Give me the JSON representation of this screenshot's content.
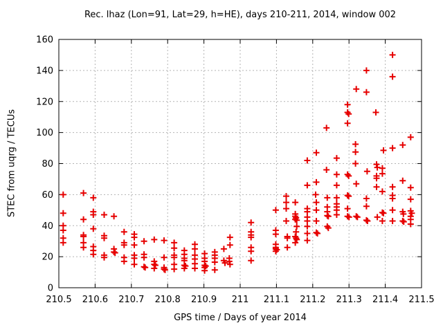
{
  "chart_data": {
    "type": "scatter",
    "title": "Rec. lhaz (Lon=91, Lat=29, h=HE), days 210-211, 2014, window 002",
    "xlabel": "GPS time / Days of year 2014",
    "ylabel": "STEC from uqrg / TECUs",
    "xlim": [
      210.5,
      211.5
    ],
    "ylim": [
      0,
      160
    ],
    "grid": true,
    "legend": "none",
    "marker": {
      "shape": "plus",
      "color": "#e60000",
      "size": 9
    },
    "colors": {
      "grid": "#b3b3b3",
      "axis": "#000000",
      "text": "#000000",
      "background": "#ffffff"
    },
    "xticks": {
      "values": [
        210.5,
        210.6,
        210.7,
        210.8,
        210.9,
        211.0,
        211.1,
        211.2,
        211.3,
        211.4,
        211.5
      ],
      "labels": [
        "210.5",
        "210.6",
        "210.7",
        "210.8",
        "210.9",
        "211",
        "211.1",
        "211.2",
        "211.3",
        "211.4",
        "211.5"
      ]
    },
    "yticks": {
      "values": [
        0,
        20,
        40,
        60,
        80,
        100,
        120,
        140,
        160
      ],
      "labels": [
        "0",
        "20",
        "40",
        "60",
        "80",
        "100",
        "120",
        "140",
        "160"
      ]
    },
    "series": [
      {
        "name": "STEC",
        "points": [
          [
            210.512,
            60
          ],
          [
            210.512,
            48
          ],
          [
            210.512,
            40
          ],
          [
            210.512,
            37
          ],
          [
            210.512,
            32
          ],
          [
            210.512,
            29
          ],
          [
            210.568,
            61
          ],
          [
            210.568,
            44
          ],
          [
            210.568,
            34
          ],
          [
            210.568,
            33
          ],
          [
            210.568,
            29
          ],
          [
            210.568,
            26
          ],
          [
            210.595,
            58
          ],
          [
            210.595,
            49
          ],
          [
            210.595,
            47
          ],
          [
            210.595,
            38
          ],
          [
            210.595,
            26.5
          ],
          [
            210.595,
            24
          ],
          [
            210.595,
            21.5
          ],
          [
            210.625,
            47
          ],
          [
            210.625,
            33.5
          ],
          [
            210.625,
            32
          ],
          [
            210.625,
            21
          ],
          [
            210.625,
            19.5
          ],
          [
            210.652,
            46
          ],
          [
            210.652,
            25
          ],
          [
            210.652,
            23
          ],
          [
            210.655,
            22.5
          ],
          [
            210.68,
            36
          ],
          [
            210.68,
            29
          ],
          [
            210.68,
            27.5
          ],
          [
            210.68,
            19.5
          ],
          [
            210.68,
            17
          ],
          [
            210.708,
            34.5
          ],
          [
            210.708,
            32.5
          ],
          [
            210.708,
            27.5
          ],
          [
            210.708,
            21
          ],
          [
            210.708,
            19
          ],
          [
            210.708,
            15
          ],
          [
            210.735,
            30
          ],
          [
            210.735,
            21.5
          ],
          [
            210.735,
            19.5
          ],
          [
            210.735,
            13.5
          ],
          [
            210.738,
            13
          ],
          [
            210.763,
            31
          ],
          [
            210.763,
            17
          ],
          [
            210.763,
            15
          ],
          [
            210.766,
            14.5
          ],
          [
            210.763,
            12.5
          ],
          [
            210.79,
            30.5
          ],
          [
            210.79,
            19.5
          ],
          [
            210.79,
            13
          ],
          [
            210.79,
            12
          ],
          [
            210.793,
            11.5
          ],
          [
            210.818,
            29
          ],
          [
            210.818,
            25.5
          ],
          [
            210.818,
            21
          ],
          [
            210.818,
            19.5
          ],
          [
            210.818,
            15
          ],
          [
            210.818,
            12
          ],
          [
            210.846,
            24
          ],
          [
            210.846,
            21.5
          ],
          [
            210.846,
            19
          ],
          [
            210.846,
            17.5
          ],
          [
            210.846,
            14.5
          ],
          [
            210.849,
            14
          ],
          [
            210.846,
            12.5
          ],
          [
            210.875,
            28
          ],
          [
            210.875,
            25
          ],
          [
            210.875,
            21
          ],
          [
            210.875,
            18.5
          ],
          [
            210.875,
            15.5
          ],
          [
            210.875,
            12.5
          ],
          [
            210.902,
            22
          ],
          [
            210.902,
            19
          ],
          [
            210.902,
            17
          ],
          [
            210.902,
            14.5
          ],
          [
            210.905,
            14
          ],
          [
            210.902,
            13
          ],
          [
            210.902,
            11
          ],
          [
            210.93,
            23
          ],
          [
            210.93,
            21
          ],
          [
            210.93,
            19
          ],
          [
            210.93,
            16.5
          ],
          [
            210.93,
            11.5
          ],
          [
            210.955,
            25
          ],
          [
            210.955,
            17.5
          ],
          [
            210.958,
            16
          ],
          [
            210.972,
            32.5
          ],
          [
            210.972,
            27.5
          ],
          [
            210.97,
            19
          ],
          [
            210.97,
            17
          ],
          [
            210.972,
            15
          ],
          [
            211.03,
            42
          ],
          [
            211.03,
            36
          ],
          [
            211.03,
            34
          ],
          [
            211.03,
            32.5
          ],
          [
            211.03,
            26
          ],
          [
            211.03,
            23.5
          ],
          [
            211.03,
            17.5
          ],
          [
            211.098,
            50
          ],
          [
            211.098,
            37
          ],
          [
            211.098,
            34.5
          ],
          [
            211.098,
            28
          ],
          [
            211.098,
            26
          ],
          [
            211.098,
            25
          ],
          [
            211.101,
            24.5
          ],
          [
            211.098,
            23.5
          ],
          [
            211.127,
            59
          ],
          [
            211.127,
            55
          ],
          [
            211.127,
            51
          ],
          [
            211.127,
            43
          ],
          [
            211.13,
            33
          ],
          [
            211.13,
            32
          ],
          [
            211.13,
            26
          ],
          [
            211.152,
            55
          ],
          [
            211.152,
            47.5
          ],
          [
            211.152,
            46
          ],
          [
            211.154,
            45
          ],
          [
            211.152,
            44
          ],
          [
            211.156,
            43.5
          ],
          [
            211.156,
            39.5
          ],
          [
            211.154,
            36
          ],
          [
            211.152,
            33
          ],
          [
            211.154,
            32
          ],
          [
            211.156,
            31
          ],
          [
            211.152,
            29
          ],
          [
            211.185,
            82
          ],
          [
            211.185,
            66
          ],
          [
            211.185,
            51
          ],
          [
            211.185,
            49
          ],
          [
            211.185,
            45.5
          ],
          [
            211.185,
            43
          ],
          [
            211.185,
            39.5
          ],
          [
            211.185,
            35
          ],
          [
            211.185,
            30.5
          ],
          [
            211.21,
            87
          ],
          [
            211.21,
            68
          ],
          [
            211.208,
            60
          ],
          [
            211.21,
            55
          ],
          [
            211.21,
            50
          ],
          [
            211.21,
            43
          ],
          [
            211.21,
            35.5
          ],
          [
            211.213,
            35
          ],
          [
            211.238,
            103
          ],
          [
            211.238,
            76
          ],
          [
            211.24,
            58
          ],
          [
            211.24,
            52
          ],
          [
            211.24,
            49
          ],
          [
            211.24,
            46.5
          ],
          [
            211.243,
            46
          ],
          [
            211.24,
            39.5
          ],
          [
            211.243,
            38.5
          ],
          [
            211.266,
            83.5
          ],
          [
            211.266,
            73
          ],
          [
            211.266,
            66
          ],
          [
            211.266,
            58
          ],
          [
            211.266,
            54
          ],
          [
            211.266,
            52
          ],
          [
            211.266,
            50
          ],
          [
            211.266,
            47
          ],
          [
            211.296,
            118
          ],
          [
            211.296,
            113
          ],
          [
            211.299,
            112
          ],
          [
            211.296,
            106
          ],
          [
            211.296,
            73
          ],
          [
            211.299,
            72
          ],
          [
            211.296,
            59.5
          ],
          [
            211.299,
            59
          ],
          [
            211.296,
            51
          ],
          [
            211.296,
            46
          ],
          [
            211.3,
            45.5
          ],
          [
            211.32,
            128
          ],
          [
            211.318,
            92.5
          ],
          [
            211.318,
            87.5
          ],
          [
            211.318,
            80
          ],
          [
            211.32,
            67
          ],
          [
            211.32,
            46
          ],
          [
            211.323,
            45.5
          ],
          [
            211.348,
            140
          ],
          [
            211.348,
            126
          ],
          [
            211.35,
            75
          ],
          [
            211.348,
            57.5
          ],
          [
            211.348,
            52.5
          ],
          [
            211.348,
            43.5
          ],
          [
            211.351,
            43
          ],
          [
            211.374,
            113
          ],
          [
            211.376,
            79.5
          ],
          [
            211.378,
            77.5
          ],
          [
            211.376,
            72
          ],
          [
            211.376,
            70.5
          ],
          [
            211.376,
            65
          ],
          [
            211.378,
            45.5
          ],
          [
            211.395,
            88.5
          ],
          [
            211.392,
            77
          ],
          [
            211.392,
            73.5
          ],
          [
            211.392,
            62
          ],
          [
            211.392,
            48.5
          ],
          [
            211.395,
            48
          ],
          [
            211.392,
            43
          ],
          [
            211.42,
            150
          ],
          [
            211.42,
            136
          ],
          [
            211.42,
            90
          ],
          [
            211.42,
            65
          ],
          [
            211.42,
            59.5
          ],
          [
            211.42,
            57.5
          ],
          [
            211.42,
            50
          ],
          [
            211.42,
            43
          ],
          [
            211.448,
            92
          ],
          [
            211.448,
            69
          ],
          [
            211.448,
            49
          ],
          [
            211.45,
            47.5
          ],
          [
            211.448,
            43
          ],
          [
            211.451,
            42.5
          ],
          [
            211.47,
            97
          ],
          [
            211.47,
            64.5
          ],
          [
            211.47,
            57
          ],
          [
            211.47,
            49.5
          ],
          [
            211.473,
            48
          ],
          [
            211.47,
            46
          ],
          [
            211.47,
            44
          ],
          [
            211.47,
            41
          ]
        ]
      }
    ]
  }
}
